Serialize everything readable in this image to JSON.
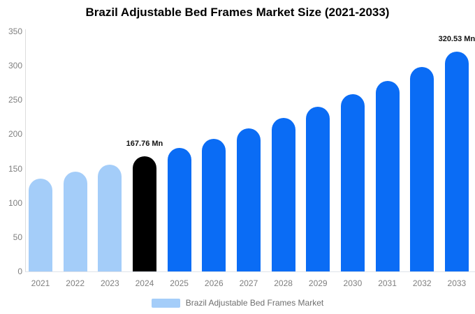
{
  "title": "Brazil Adjustable Bed Frames Market Size (2021-2033)",
  "colors": {
    "light": "#a4cdf9",
    "primary": "#0a6cf5",
    "highlight": "#000000",
    "axis_line": "#dcdcdc",
    "tick_text": "#7f7f7f",
    "value_label_text": "#111111",
    "legend_text": "#6e6e6e"
  },
  "chart_data": {
    "type": "bar",
    "title": "Brazil Adjustable Bed Frames Market Size (2021-2033)",
    "categories": [
      "2021",
      "2022",
      "2023",
      "2024",
      "2025",
      "2026",
      "2027",
      "2028",
      "2029",
      "2030",
      "2031",
      "2032",
      "2033"
    ],
    "values": [
      135.3,
      145.4,
      156.2,
      167.76,
      180.3,
      193.7,
      208.2,
      223.7,
      240.4,
      258.3,
      277.6,
      298.3,
      320.53
    ],
    "bar_color_keys": [
      "light",
      "light",
      "light",
      "highlight",
      "primary",
      "primary",
      "primary",
      "primary",
      "primary",
      "primary",
      "primary",
      "primary",
      "primary"
    ],
    "point_labels": {
      "2024": "167.76 Mn",
      "2033": "320.53 Mn"
    },
    "xlabel": "",
    "ylabel": "",
    "ylim": [
      0,
      350
    ],
    "yticks": [
      0,
      50,
      100,
      150,
      200,
      250,
      300,
      350
    ],
    "grid": false,
    "legend": {
      "label": "Brazil Adjustable Bed Frames Market",
      "swatch_color": "#a4cdf9",
      "position": "bottom-center"
    }
  }
}
